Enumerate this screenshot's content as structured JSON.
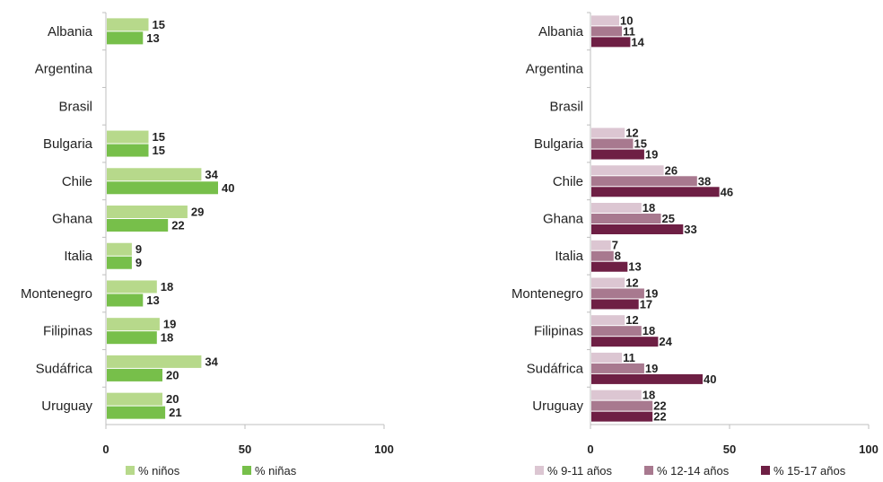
{
  "chart_data": [
    {
      "type": "bar",
      "orientation": "horizontal",
      "categories": [
        "Albania",
        "Argentina",
        "Brasil",
        "Bulgaria",
        "Chile",
        "Ghana",
        "Italia",
        "Montenegro",
        "Filipinas",
        "Sudáfrica",
        "Uruguay"
      ],
      "series": [
        {
          "name": "% niños",
          "color": "#b7d98b",
          "values": [
            15,
            null,
            null,
            15,
            34,
            29,
            9,
            18,
            19,
            34,
            20
          ]
        },
        {
          "name": "% niñas",
          "color": "#77bf4a",
          "values": [
            13,
            null,
            null,
            15,
            40,
            22,
            9,
            13,
            18,
            20,
            21
          ]
        }
      ],
      "xlim": [
        0,
        100
      ],
      "xticks": [
        "0",
        "50",
        "100"
      ],
      "grid": false,
      "legend": "bottom"
    },
    {
      "type": "bar",
      "orientation": "horizontal",
      "categories": [
        "Albania",
        "Argentina",
        "Brasil",
        "Bulgaria",
        "Chile",
        "Ghana",
        "Italia",
        "Montenegro",
        "Filipinas",
        "Sudáfrica",
        "Uruguay"
      ],
      "series": [
        {
          "name": "% 9-11 años",
          "color": "#dcc6d2",
          "values": [
            10,
            null,
            null,
            12,
            26,
            18,
            7,
            12,
            12,
            11,
            18
          ]
        },
        {
          "name": "% 12-14 años",
          "color": "#a8798f",
          "values": [
            11,
            null,
            null,
            15,
            38,
            25,
            8,
            19,
            18,
            19,
            22
          ]
        },
        {
          "name": "% 15-17 años",
          "color": "#6e1f44",
          "values": [
            14,
            null,
            null,
            19,
            46,
            33,
            13,
            17,
            24,
            40,
            22
          ]
        }
      ],
      "xlim": [
        0,
        100
      ],
      "xticks": [
        "0",
        "50",
        "100"
      ],
      "grid": false,
      "legend": "bottom"
    }
  ]
}
